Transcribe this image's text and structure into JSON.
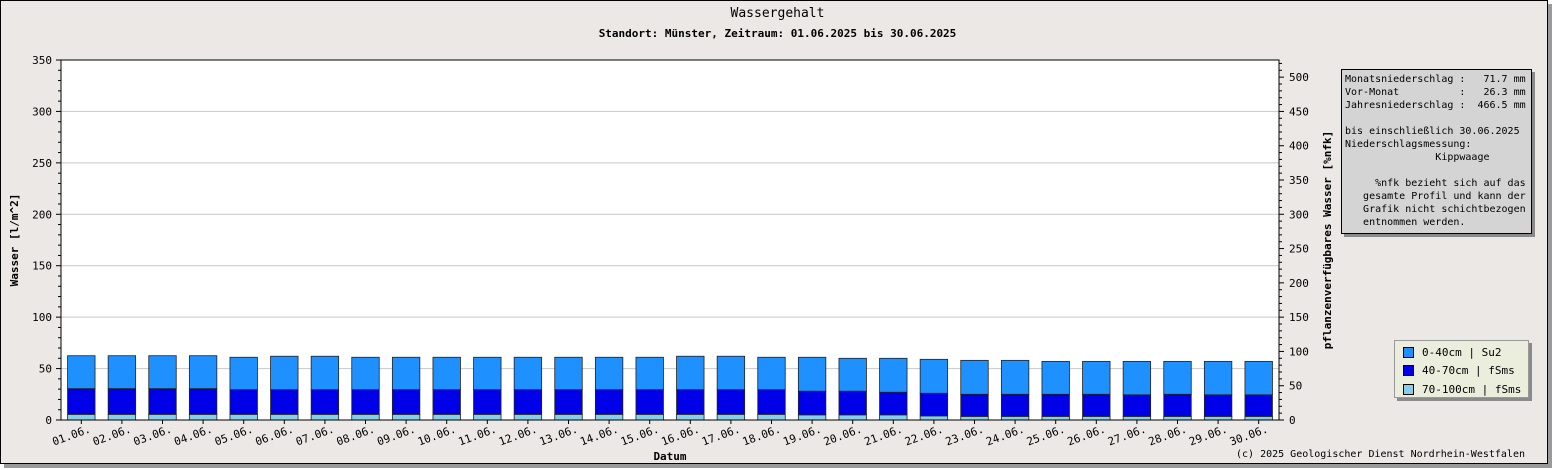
{
  "title": "Wassergehalt",
  "subtitle": "Standort: Münster, Zeitraum: 01.06.2025 bis 30.06.2025",
  "info": {
    "lines": [
      "Monatsniederschlag :   71.7 mm",
      "Vor-Monat          :   26.3 mm",
      "Jahresniederschlag :  466.5 mm",
      "",
      "bis einschließlich 30.06.2025",
      "Niederschlagsmessung:",
      "               Kippwaage",
      "",
      "     %nfk bezieht sich auf das",
      "   gesamte Profil und kann der",
      "   Grafik nicht schichtbezogen",
      "   entnommen werden."
    ]
  },
  "copyright": "(c) 2025 Geologischer Dienst Nordrhein-Westfalen",
  "colors": {
    "layer1": "#1e90ff",
    "layer2": "#0000e8",
    "layer3": "#87ceeb"
  },
  "chart_data": {
    "type": "bar",
    "stacked": true,
    "title": "Wassergehalt",
    "subtitle": "Standort: Münster, Zeitraum: 01.06.2025 bis 30.06.2025",
    "xlabel": "Datum",
    "ylabel": "Wasser [l/m^2]",
    "y2label": "pflanzenverfügbares Wasser [%nfk]",
    "ylim": [
      0,
      350
    ],
    "yticks": [
      "0",
      "50",
      "100",
      "150",
      "200",
      "250",
      "300",
      "350"
    ],
    "y2lim": [
      0,
      525
    ],
    "y2ticks": [
      "0",
      "50",
      "100",
      "150",
      "200",
      "250",
      "300",
      "350",
      "400",
      "450",
      "500"
    ],
    "grid": true,
    "legend_position": "right",
    "categories": [
      "01.06.",
      "02.06.",
      "03.06.",
      "04.06.",
      "05.06.",
      "06.06.",
      "07.06.",
      "08.06.",
      "09.06.",
      "10.06.",
      "11.06.",
      "12.06.",
      "13.06.",
      "14.06.",
      "15.06.",
      "16.06.",
      "17.06.",
      "18.06.",
      "19.06.",
      "20.06.",
      "21.06.",
      "22.06.",
      "23.06.",
      "24.06.",
      "25.06.",
      "26.06.",
      "27.06.",
      "28.06.",
      "29.06.",
      "30.06."
    ],
    "series": [
      {
        "name": "70-100cm | fSms",
        "values": [
          5.5,
          5.5,
          5.5,
          5.5,
          5.5,
          5.5,
          5.5,
          5.5,
          5.5,
          5.5,
          5.5,
          5.5,
          5.5,
          5.5,
          5.5,
          5.5,
          5.5,
          5.5,
          5,
          5,
          5,
          4,
          3.5,
          3.5,
          3.5,
          3.5,
          3.5,
          3.5,
          3.5,
          3.5
        ]
      },
      {
        "name": "40-70cm | fSms",
        "values": [
          25,
          25,
          25,
          25,
          24,
          24,
          24,
          24,
          24,
          24,
          24,
          24,
          24,
          24,
          24,
          24,
          24,
          24,
          23,
          23,
          22,
          22,
          21.5,
          21.5,
          21.5,
          21.5,
          21,
          21.5,
          21,
          21
        ]
      },
      {
        "name": "0-40cm | Su2",
        "values": [
          32,
          32,
          32,
          32,
          31.5,
          32.5,
          32.5,
          31.5,
          31.5,
          31.5,
          31.5,
          31.5,
          31.5,
          31.5,
          31.5,
          32.5,
          32.5,
          31.5,
          33,
          32,
          33,
          33,
          33,
          33,
          32,
          32,
          32.5,
          32,
          32.5,
          32.5
        ]
      }
    ]
  }
}
